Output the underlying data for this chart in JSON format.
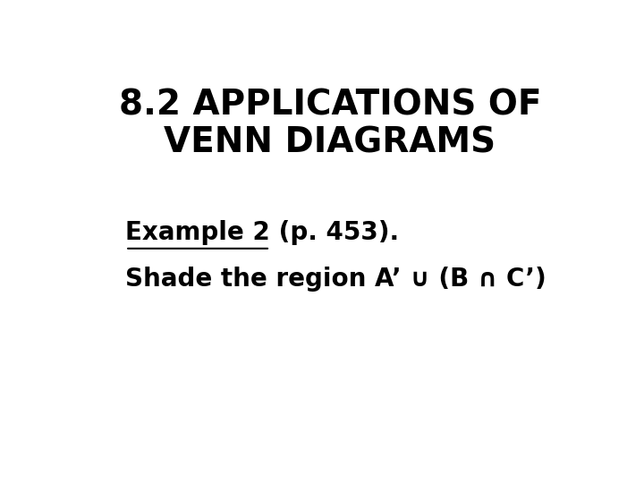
{
  "title_line1": "8.2 APPLICATIONS OF",
  "title_line2": "VENN DIAGRAMS",
  "example_underlined": "Example 2",
  "example_rest": " (p. 453).",
  "union_symbol": "∪",
  "intersect_symbol": "∩",
  "background_color": "#ffffff",
  "text_color": "#000000",
  "title_fontsize": 28,
  "body_fontsize": 20
}
